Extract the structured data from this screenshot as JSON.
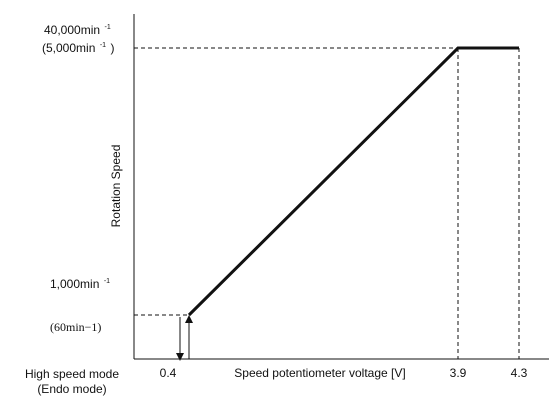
{
  "chart_data": {
    "type": "line",
    "xlabel": "Speed potentiometer voltage [V]",
    "ylabel": "Rotation Speed",
    "mode_label_line1": "High speed mode",
    "mode_label_line2": "(Endo mode)",
    "x_ticks": [
      "0.4",
      "3.9",
      "4.3"
    ],
    "y_labels": {
      "top_main": "40,000min",
      "top_sup": "-1",
      "top_sub": "(5,000min",
      "top_sub_sup": "-1",
      "top_sub_close": ")",
      "bottom_main": "1,000min",
      "bottom_sup": "-1",
      "bottom_sub": "(60min−1)"
    },
    "series": [
      {
        "values": [
          {
            "x": 0.4,
            "y": 1000
          },
          {
            "x": 3.9,
            "y": 40000
          },
          {
            "x": 4.3,
            "y": 40000
          }
        ]
      }
    ],
    "xlim": [
      0,
      4.3
    ],
    "ylim": [
      0,
      40000
    ],
    "grid": false,
    "line_color": "#111111"
  }
}
